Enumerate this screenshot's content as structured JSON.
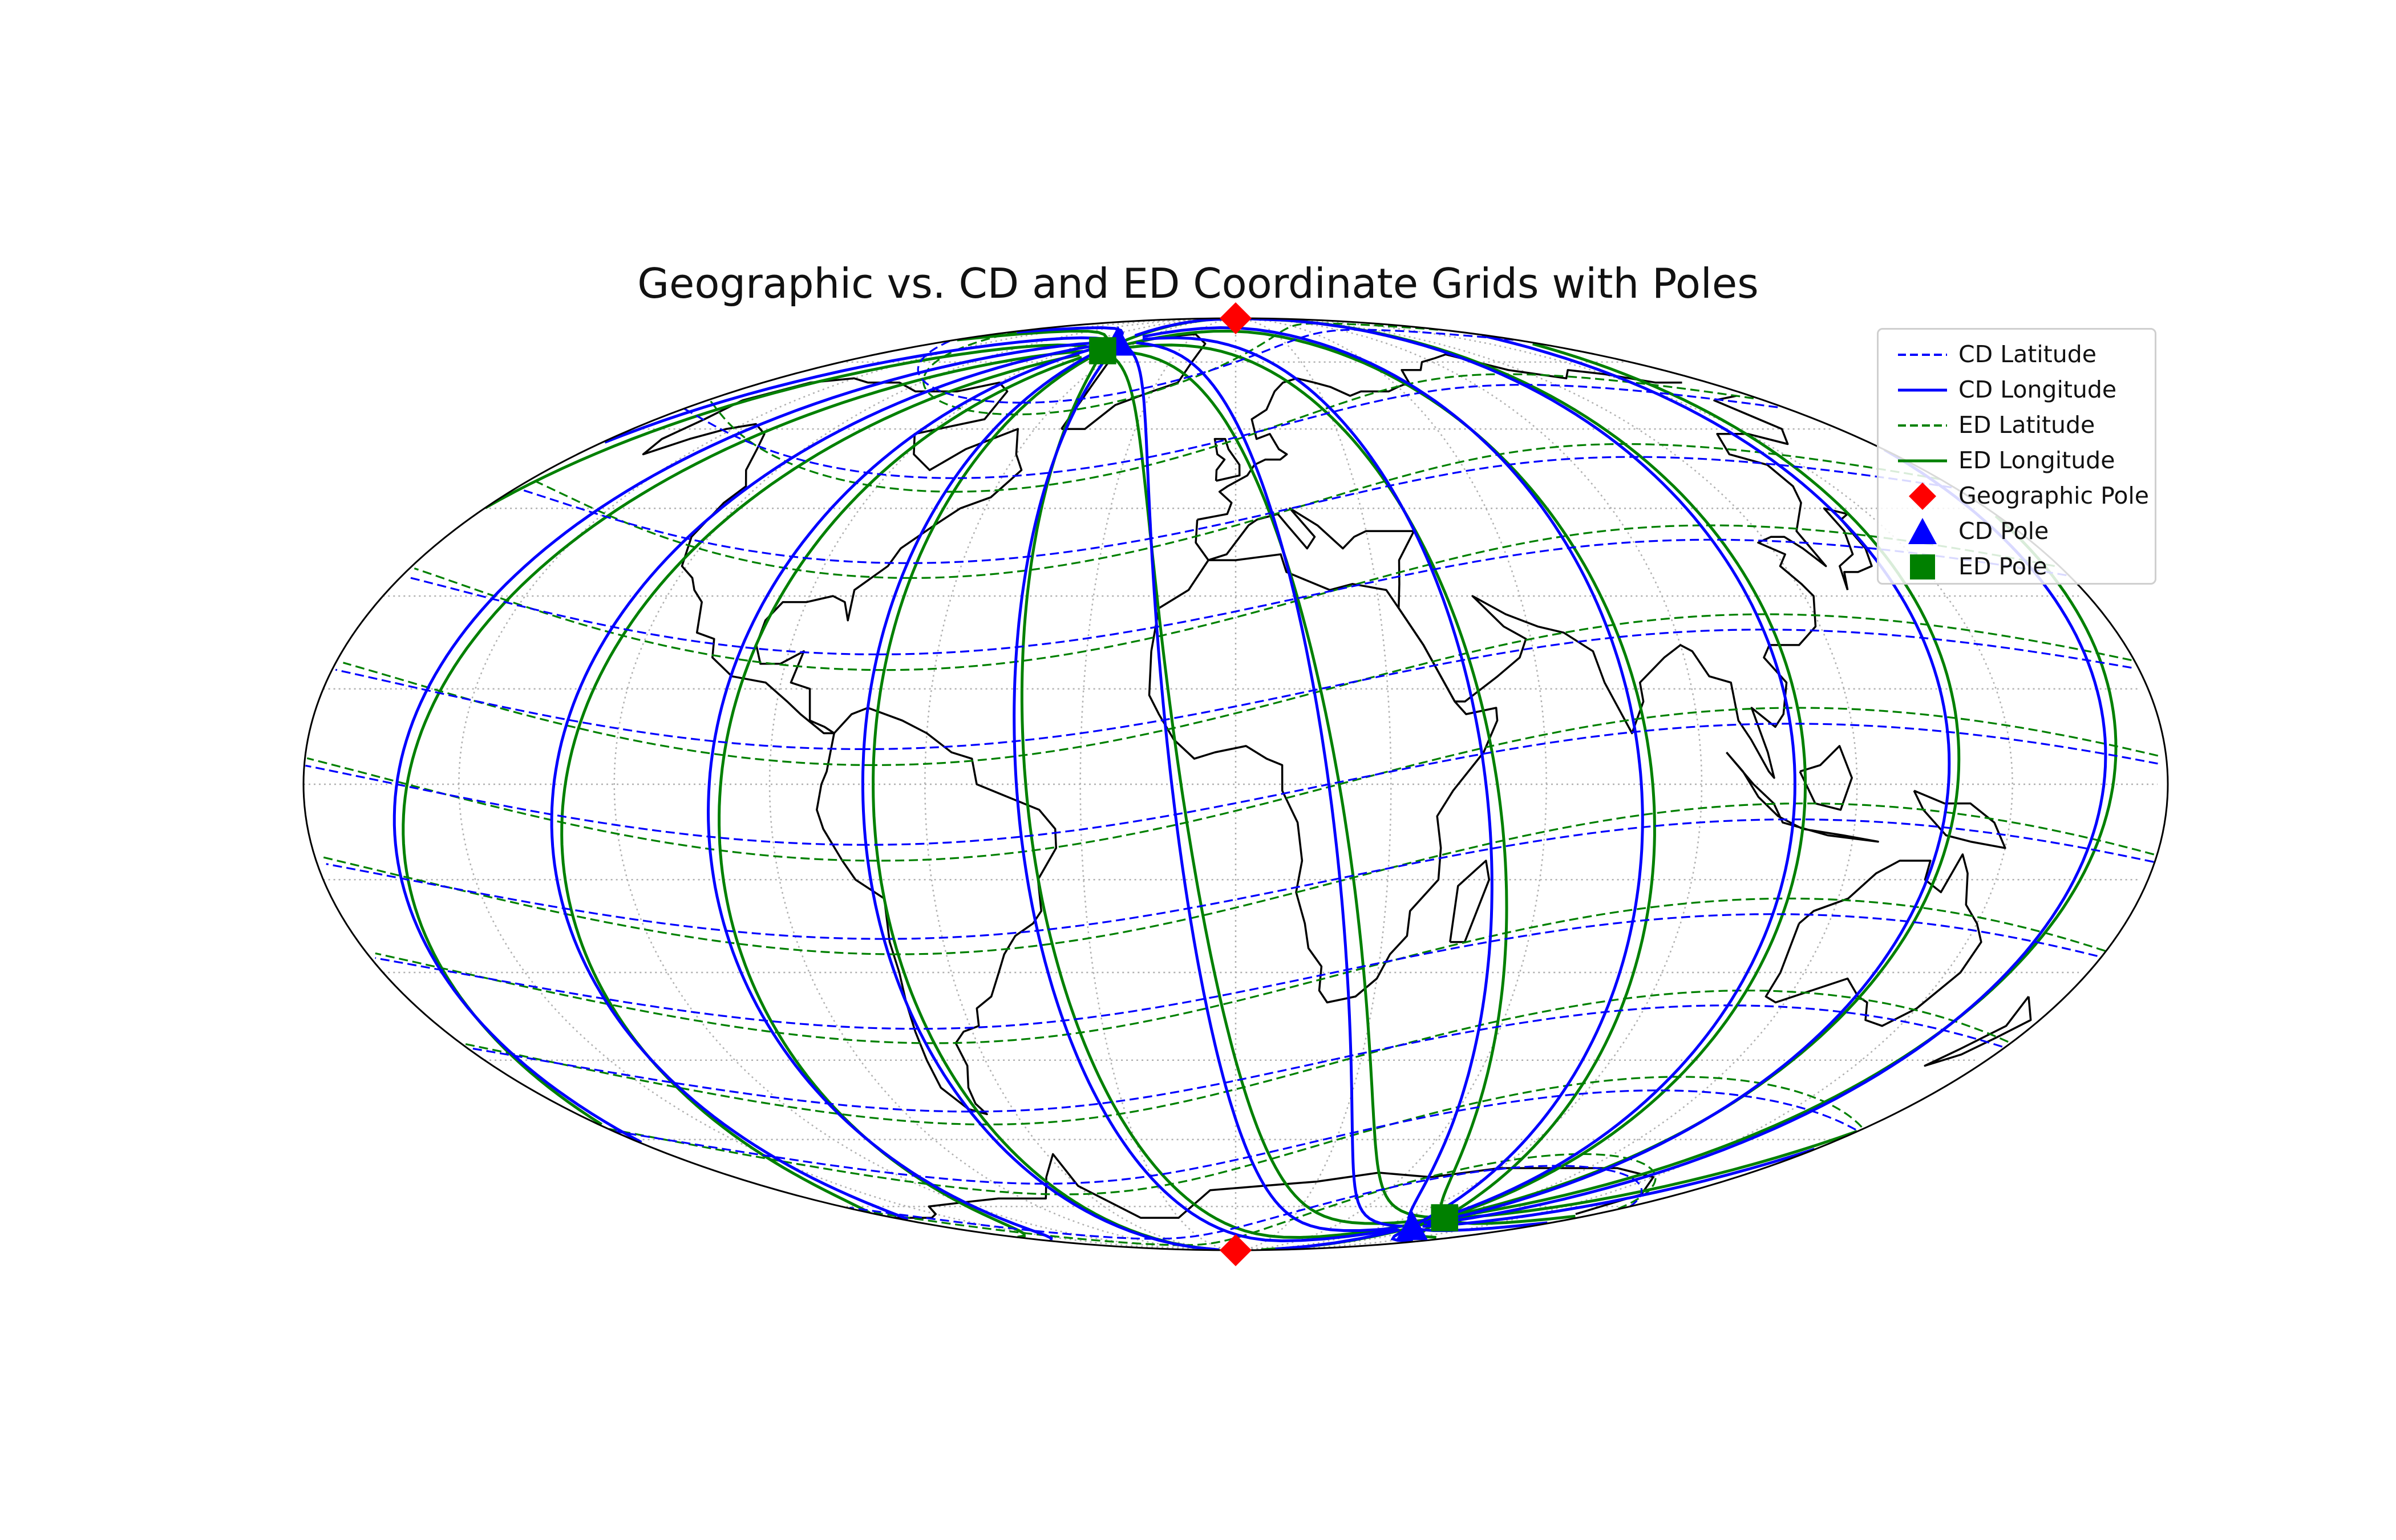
{
  "title": "Geographic vs. CD and ED Coordinate Grids with Poles",
  "map": {
    "projection": "mollweide",
    "central_longitude": 0,
    "graticule": "gray dotted",
    "colors": {
      "cd": "#0000ff",
      "ed": "#008000",
      "geographic_pole": "#ff0000",
      "coastline": "#000000"
    }
  },
  "poles": {
    "geographic": {
      "north": [
        0,
        90
      ],
      "south": [
        0,
        -90
      ]
    },
    "cd": {
      "north": [
        -72,
        80.5
      ],
      "south": [
        108,
        -80.5
      ]
    },
    "ed": {
      "north": [
        -70,
        78
      ],
      "south": [
        110,
        -78
      ]
    }
  },
  "legend": {
    "items": [
      {
        "label": "CD Latitude",
        "symbol": "dashed-line",
        "color": "#0000ff"
      },
      {
        "label": "CD Longitude",
        "symbol": "solid-line",
        "color": "#0000ff"
      },
      {
        "label": "ED Latitude",
        "symbol": "dashed-line",
        "color": "#008000"
      },
      {
        "label": "ED Longitude",
        "symbol": "solid-line",
        "color": "#008000"
      },
      {
        "label": "Geographic Pole",
        "symbol": "diamond",
        "color": "#ff0000"
      },
      {
        "label": "CD Pole",
        "symbol": "triangle",
        "color": "#0000ff"
      },
      {
        "label": "ED Pole",
        "symbol": "square",
        "color": "#008000"
      }
    ]
  }
}
